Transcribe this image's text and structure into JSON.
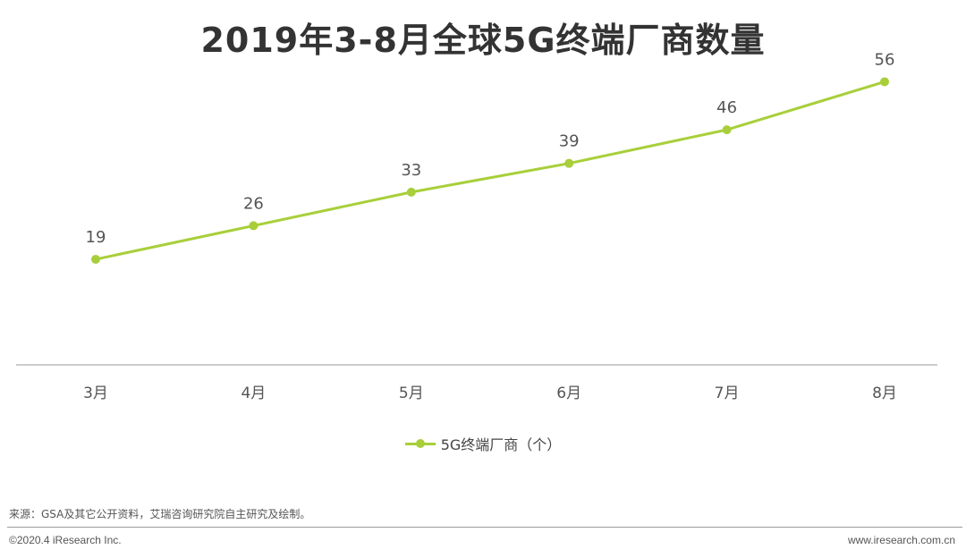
{
  "colors": {
    "series": "#a8cf3a",
    "axis": "#bbbbbb",
    "text": "#333333",
    "label": "#555555"
  },
  "chart_data": {
    "type": "line",
    "title": "2019年3-8月全球5G终端厂商数量",
    "categories": [
      "3月",
      "4月",
      "5月",
      "6月",
      "7月",
      "8月"
    ],
    "series": [
      {
        "name": "5G终端厂商（个）",
        "values": [
          19,
          26,
          33,
          39,
          46,
          56
        ]
      }
    ],
    "xlabel": "",
    "ylabel": "",
    "ylim": [
      -3,
      60
    ],
    "grid": false,
    "legend": "bottom-center",
    "data_labels": true
  },
  "footer": {
    "source": "来源：GSA及其它公开资料，艾瑞咨询研究院自主研究及绘制。",
    "copyright": "©2020.4 iResearch Inc.",
    "website": "www.iresearch.com.cn"
  }
}
